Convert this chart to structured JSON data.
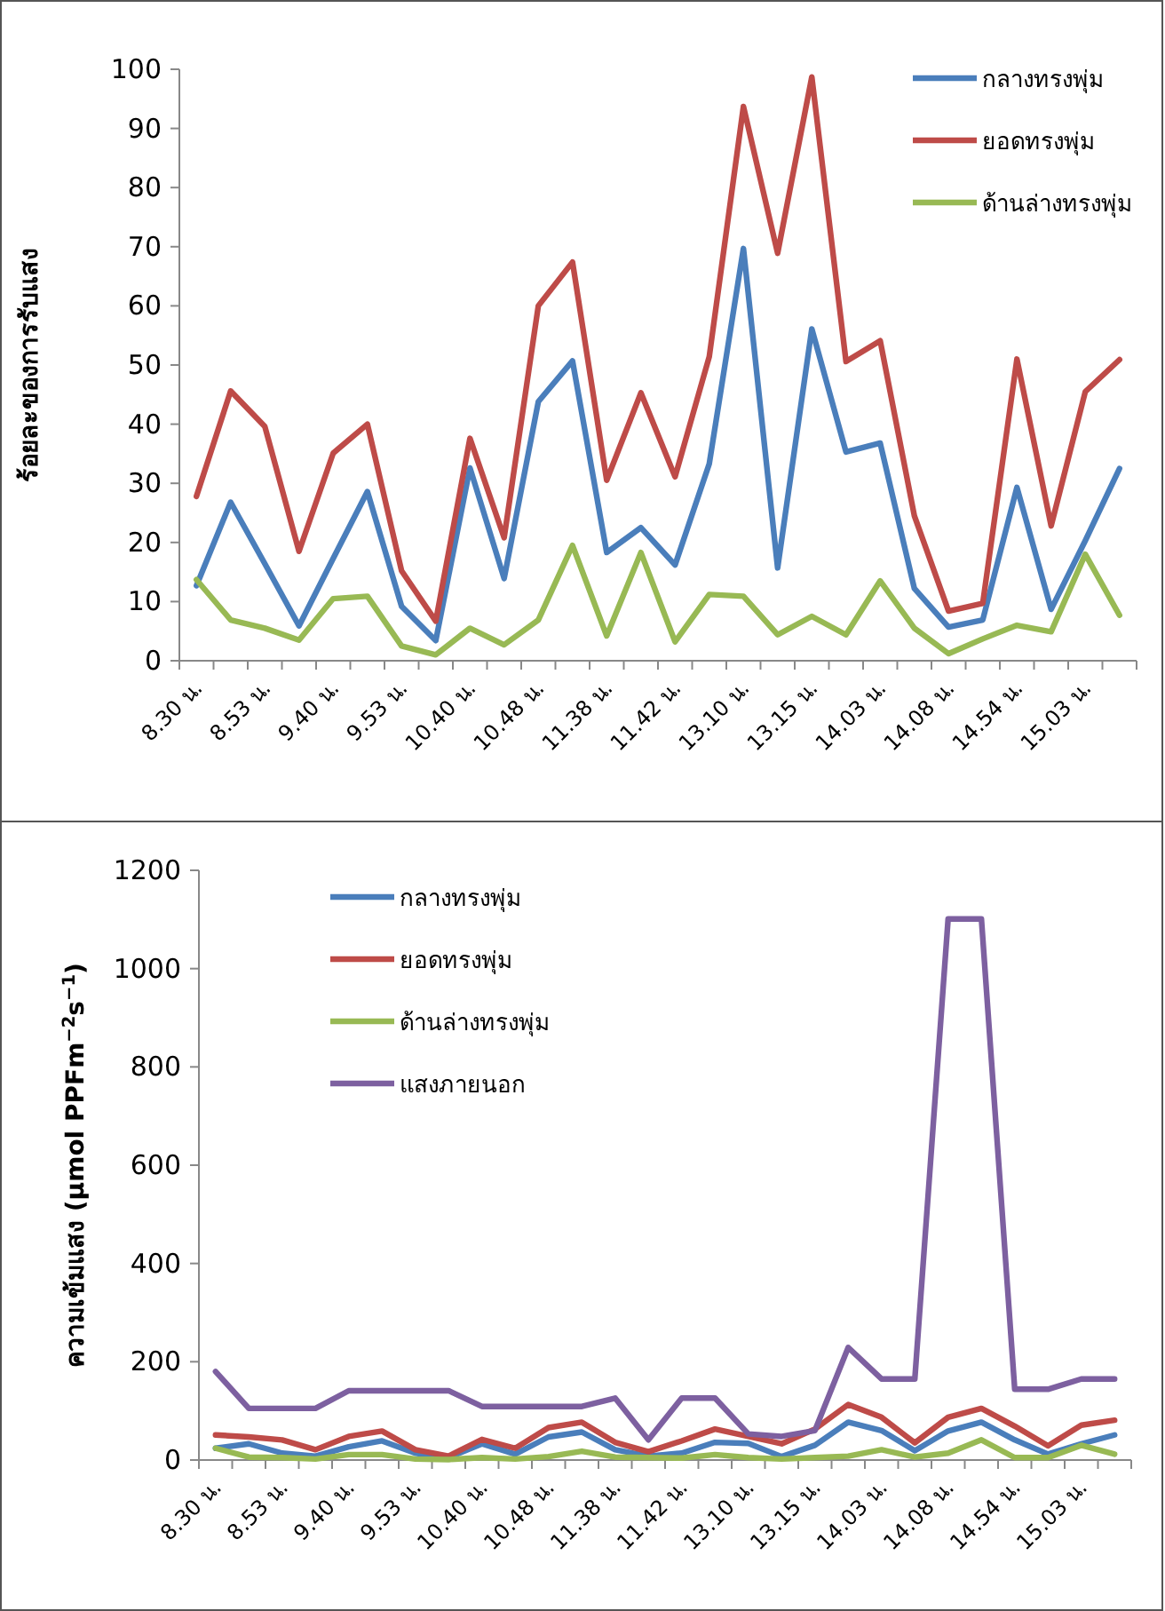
{
  "chart_data": [
    {
      "type": "line",
      "ylabel": "ร้อยละของการรับแสง",
      "categories": [
        "8.30 น.",
        null,
        "8.53 น.",
        null,
        "9.40 น.",
        null,
        "9.53 น.",
        null,
        "10.40 น.",
        null,
        "10.48 น.",
        null,
        "11.38 น.",
        null,
        "11.42 น.",
        null,
        "13.10 น.",
        null,
        "13.15 น.",
        null,
        "14.03 น.",
        null,
        "14.08 น.",
        null,
        "14.54 น.",
        null,
        "15.03 น.",
        null
      ],
      "series": [
        {
          "name": "กลางทรงพุ่ม",
          "color": "#4a7ebb",
          "values": [
            12.7,
            26.8,
            16.4,
            5.9,
            17.3,
            28.6,
            9.2,
            3.4,
            32.6,
            13.9,
            43.8,
            50.7,
            18.3,
            22.5,
            16.2,
            33.3,
            69.7,
            15.7,
            56.1,
            35.3,
            36.8,
            12.2,
            5.7,
            6.9,
            29.3,
            8.7,
            20.3,
            32.5
          ]
        },
        {
          "name": "ยอดทรงพุ่ม",
          "color": "#be4b48",
          "values": [
            27.8,
            45.6,
            39.6,
            18.5,
            35.1,
            40,
            15.2,
            6.7,
            37.6,
            20.8,
            60,
            67.4,
            30.5,
            45.3,
            31.1,
            51.4,
            93.7,
            68.9,
            98.7,
            50.6,
            54.1,
            24.5,
            8.4,
            9.7,
            51,
            22.8,
            45.5,
            50.9
          ]
        },
        {
          "name": "ด้านล่างทรงพุ่ม",
          "color": "#98b954",
          "values": [
            13.7,
            6.9,
            5.5,
            3.5,
            10.5,
            10.9,
            2.5,
            1,
            5.5,
            2.7,
            6.9,
            19.5,
            4.2,
            18.3,
            3.2,
            11.2,
            10.9,
            4.4,
            7.5,
            4.4,
            13.5,
            5.5,
            1.2,
            3.7,
            6,
            4.9,
            18,
            7.7
          ]
        }
      ],
      "ylim": [
        0,
        100
      ],
      "yticks": [
        0,
        10,
        20,
        30,
        40,
        50,
        60,
        70,
        80,
        90,
        100
      ],
      "legend": "top right",
      "grid": false,
      "marker": "none",
      "line_style": "solid"
    },
    {
      "type": "line",
      "ylabel": "ความเข้มแสง (µmol PPFm$^{−2}$s$^{−1}$)",
      "categories": [
        "8.30 น.",
        null,
        "8.53 น.",
        null,
        "9.40 น.",
        null,
        "9.53 น.",
        null,
        "10.40 น.",
        null,
        "10.48 น.",
        null,
        "11.38 น.",
        null,
        "11.42 น.",
        null,
        "13.10 น.",
        null,
        "13.15 น.",
        null,
        "14.03 น.",
        null,
        "14.08 น.",
        null,
        "14.54 น.",
        null,
        "15.03 น.",
        null
      ],
      "series": [
        {
          "name": "กลางทรงพุ่ม",
          "color": "#4a7ebb",
          "values": [
            24,
            33,
            14,
            8,
            27,
            39,
            14,
            5,
            33,
            12,
            47,
            57,
            21,
            8,
            14,
            36,
            34,
            7,
            30,
            77,
            60,
            19,
            59,
            77,
            41,
            12,
            33,
            51
          ]
        },
        {
          "name": "ยอดทรงพุ่ม",
          "color": "#be4b48",
          "values": [
            51,
            47,
            41,
            21,
            48,
            59,
            21,
            8,
            42,
            24,
            66,
            77,
            36,
            17,
            39,
            63,
            48,
            33,
            63,
            113,
            87,
            35,
            87,
            105,
            69,
            29,
            71,
            81
          ]
        },
        {
          "name": "ด้านล่างทรงพุ่ม",
          "color": "#98b954",
          "values": [
            24,
            6,
            5,
            2,
            11,
            11,
            2,
            1,
            5,
            2,
            7,
            18,
            6,
            5,
            4,
            11,
            5,
            2,
            5,
            8,
            21,
            6,
            14,
            41,
            5,
            5,
            30,
            12
          ]
        },
        {
          "name": "แสงภายนอก",
          "color": "#7d60a0",
          "values": [
            180,
            105,
            105,
            105,
            141,
            141,
            141,
            141,
            109,
            109,
            109,
            109,
            126,
            41,
            126,
            126,
            53,
            48,
            60,
            229,
            165,
            165,
            1101,
            1101,
            144,
            144,
            165,
            165
          ]
        }
      ],
      "ylim": [
        0,
        1200
      ],
      "yticks": [
        0,
        200,
        400,
        600,
        800,
        1000,
        1200
      ],
      "legend": "top left",
      "grid": false,
      "marker": "none",
      "line_style": "solid"
    }
  ]
}
